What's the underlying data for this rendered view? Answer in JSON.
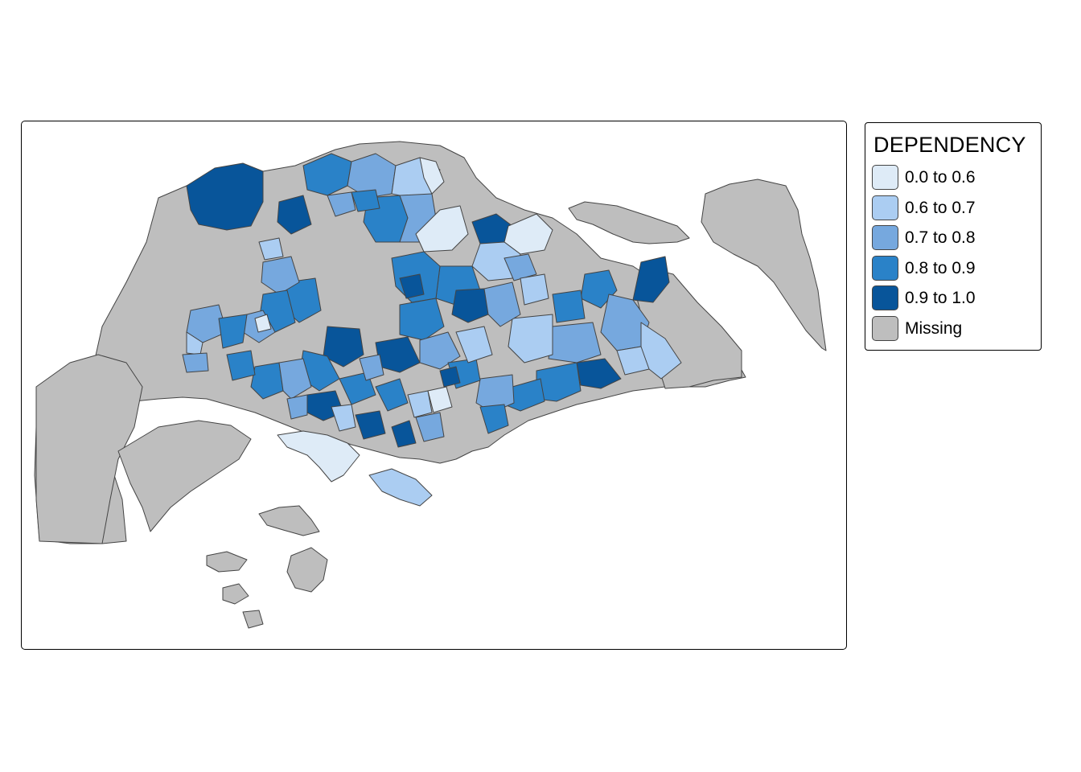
{
  "legend": {
    "title": "DEPENDENCY",
    "items": [
      {
        "label": "0.0 to 0.6",
        "color": "#deebf7"
      },
      {
        "label": "0.6 to 0.7",
        "color": "#abcdf2"
      },
      {
        "label": "0.7 to 0.8",
        "color": "#76a8de"
      },
      {
        "label": "0.8 to 0.9",
        "color": "#2a82c8"
      },
      {
        "label": "0.9 to 1.0",
        "color": "#08559a"
      },
      {
        "label": "Missing",
        "color": "#bebebe"
      }
    ]
  },
  "map": {
    "outline_color": "#444444",
    "missing_color": "#bebebe"
  }
}
